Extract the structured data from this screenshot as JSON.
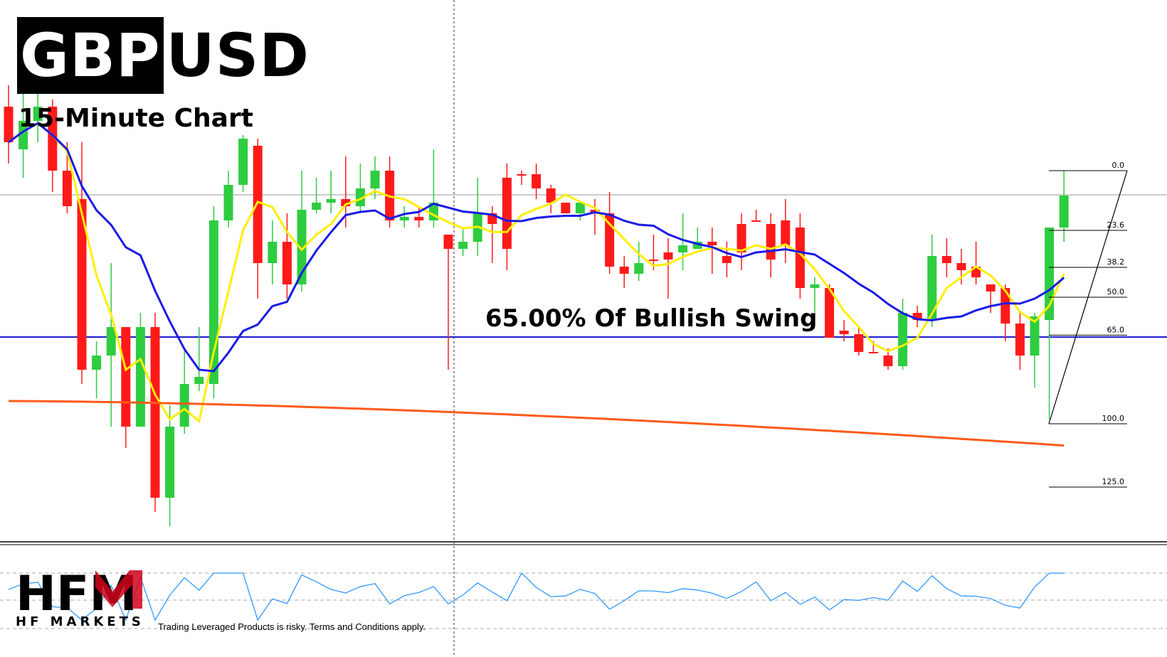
{
  "header": {
    "symbol_part1": "GBP",
    "symbol_part2": "USD",
    "subtitle": "15-Minute Chart"
  },
  "annotation": "65.00% Of Bullish Swing",
  "brand": {
    "logo_text": "HFM",
    "logo_subtext": "HF MARKETS",
    "disclaimer": "Trading Leveraged Products is risky. Terms and Conditions apply."
  },
  "colors": {
    "bull_candle": "#2ecc40",
    "bear_candle": "#ff1a1a",
    "ma_fast": "#ffee00",
    "ma_mid": "#1a1ae6",
    "ma_slow": "#ff5a1a",
    "support_line": "#1a1acc",
    "oscillator": "#3399ff",
    "logo_red": "#d0021b"
  },
  "chart_data": {
    "type": "candlestick",
    "fibonacci_levels": [
      {
        "label": "0.0",
        "value": 0.0
      },
      {
        "label": "23.6",
        "value": 23.6
      },
      {
        "label": "38.2",
        "value": 38.2
      },
      {
        "label": "50.0",
        "value": 50.0
      },
      {
        "label": "65.0",
        "value": 65.0
      },
      {
        "label": "100.0",
        "value": 100.0
      },
      {
        "label": "125.0",
        "value": 125.0
      }
    ],
    "candles": [
      [
        150,
        200,
        230,
        120
      ],
      [
        210,
        170,
        250,
        110
      ],
      [
        170,
        150,
        200,
        90
      ],
      [
        150,
        240,
        270,
        140
      ],
      [
        240,
        290,
        300,
        200
      ],
      [
        280,
        520,
        540,
        200
      ],
      [
        520,
        500,
        560,
        480
      ],
      [
        500,
        460,
        600,
        370
      ],
      [
        460,
        600,
        630,
        460
      ],
      [
        600,
        460,
        600,
        440
      ],
      [
        460,
        700,
        720,
        440
      ],
      [
        700,
        600,
        740,
        570
      ],
      [
        600,
        540,
        610,
        490
      ],
      [
        540,
        530,
        550,
        460
      ],
      [
        540,
        310,
        560,
        290
      ],
      [
        310,
        260,
        320,
        240
      ],
      [
        260,
        195,
        270,
        190
      ],
      [
        205,
        370,
        420,
        195
      ],
      [
        370,
        340,
        400,
        310
      ],
      [
        340,
        400,
        420,
        300
      ],
      [
        400,
        295,
        410,
        240
      ],
      [
        295,
        285,
        300,
        250
      ],
      [
        285,
        280,
        300,
        240
      ],
      [
        280,
        290,
        320,
        220
      ],
      [
        290,
        265,
        300,
        230
      ],
      [
        265,
        240,
        280,
        220
      ],
      [
        240,
        310,
        320,
        220
      ],
      [
        310,
        305,
        320,
        290
      ],
      [
        305,
        310,
        320,
        290
      ],
      [
        310,
        285,
        320,
        210
      ],
      [
        330,
        350,
        520,
        330
      ],
      [
        350,
        340,
        360,
        320
      ],
      [
        340,
        300,
        360,
        250
      ],
      [
        300,
        315,
        370,
        290
      ],
      [
        250,
        350,
        380,
        230
      ],
      [
        245,
        245,
        260,
        240
      ],
      [
        245,
        265,
        280,
        230
      ],
      [
        265,
        285,
        300,
        260
      ],
      [
        285,
        300,
        300,
        290
      ],
      [
        300,
        285,
        310,
        285
      ],
      [
        295,
        300,
        330,
        280
      ],
      [
        300,
        375,
        385,
        270
      ],
      [
        375,
        385,
        405,
        360
      ],
      [
        385,
        370,
        395,
        340
      ],
      [
        365,
        365,
        380,
        330
      ],
      [
        355,
        365,
        420,
        335
      ],
      [
        355,
        345,
        380,
        300
      ],
      [
        350,
        340,
        350,
        320
      ],
      [
        340,
        345,
        385,
        320
      ],
      [
        360,
        370,
        390,
        340
      ],
      [
        315,
        355,
        380,
        300
      ],
      [
        310,
        310,
        310,
        295
      ],
      [
        315,
        365,
        390,
        300
      ],
      [
        310,
        345,
        370,
        280
      ],
      [
        320,
        405,
        420,
        300
      ],
      [
        405,
        400,
        440,
        390
      ],
      [
        405,
        475,
        475,
        400
      ],
      [
        465,
        470,
        480,
        450
      ],
      [
        470,
        495,
        500,
        460
      ],
      [
        495,
        495,
        495,
        480
      ],
      [
        500,
        515,
        520,
        490
      ],
      [
        515,
        440,
        520,
        420
      ],
      [
        440,
        450,
        460,
        430
      ],
      [
        450,
        360,
        460,
        330
      ],
      [
        360,
        370,
        390,
        335
      ],
      [
        370,
        380,
        400,
        350
      ],
      [
        375,
        390,
        400,
        340
      ],
      [
        400,
        410,
        440,
        410
      ],
      [
        405,
        455,
        480,
        400
      ],
      [
        455,
        500,
        520,
        440
      ],
      [
        500,
        445,
        545,
        440
      ],
      [
        450,
        320,
        590,
        320
      ],
      [
        320,
        275,
        340,
        240
      ]
    ],
    "series": [
      {
        "name": "",
        "values": []
      }
    ]
  }
}
